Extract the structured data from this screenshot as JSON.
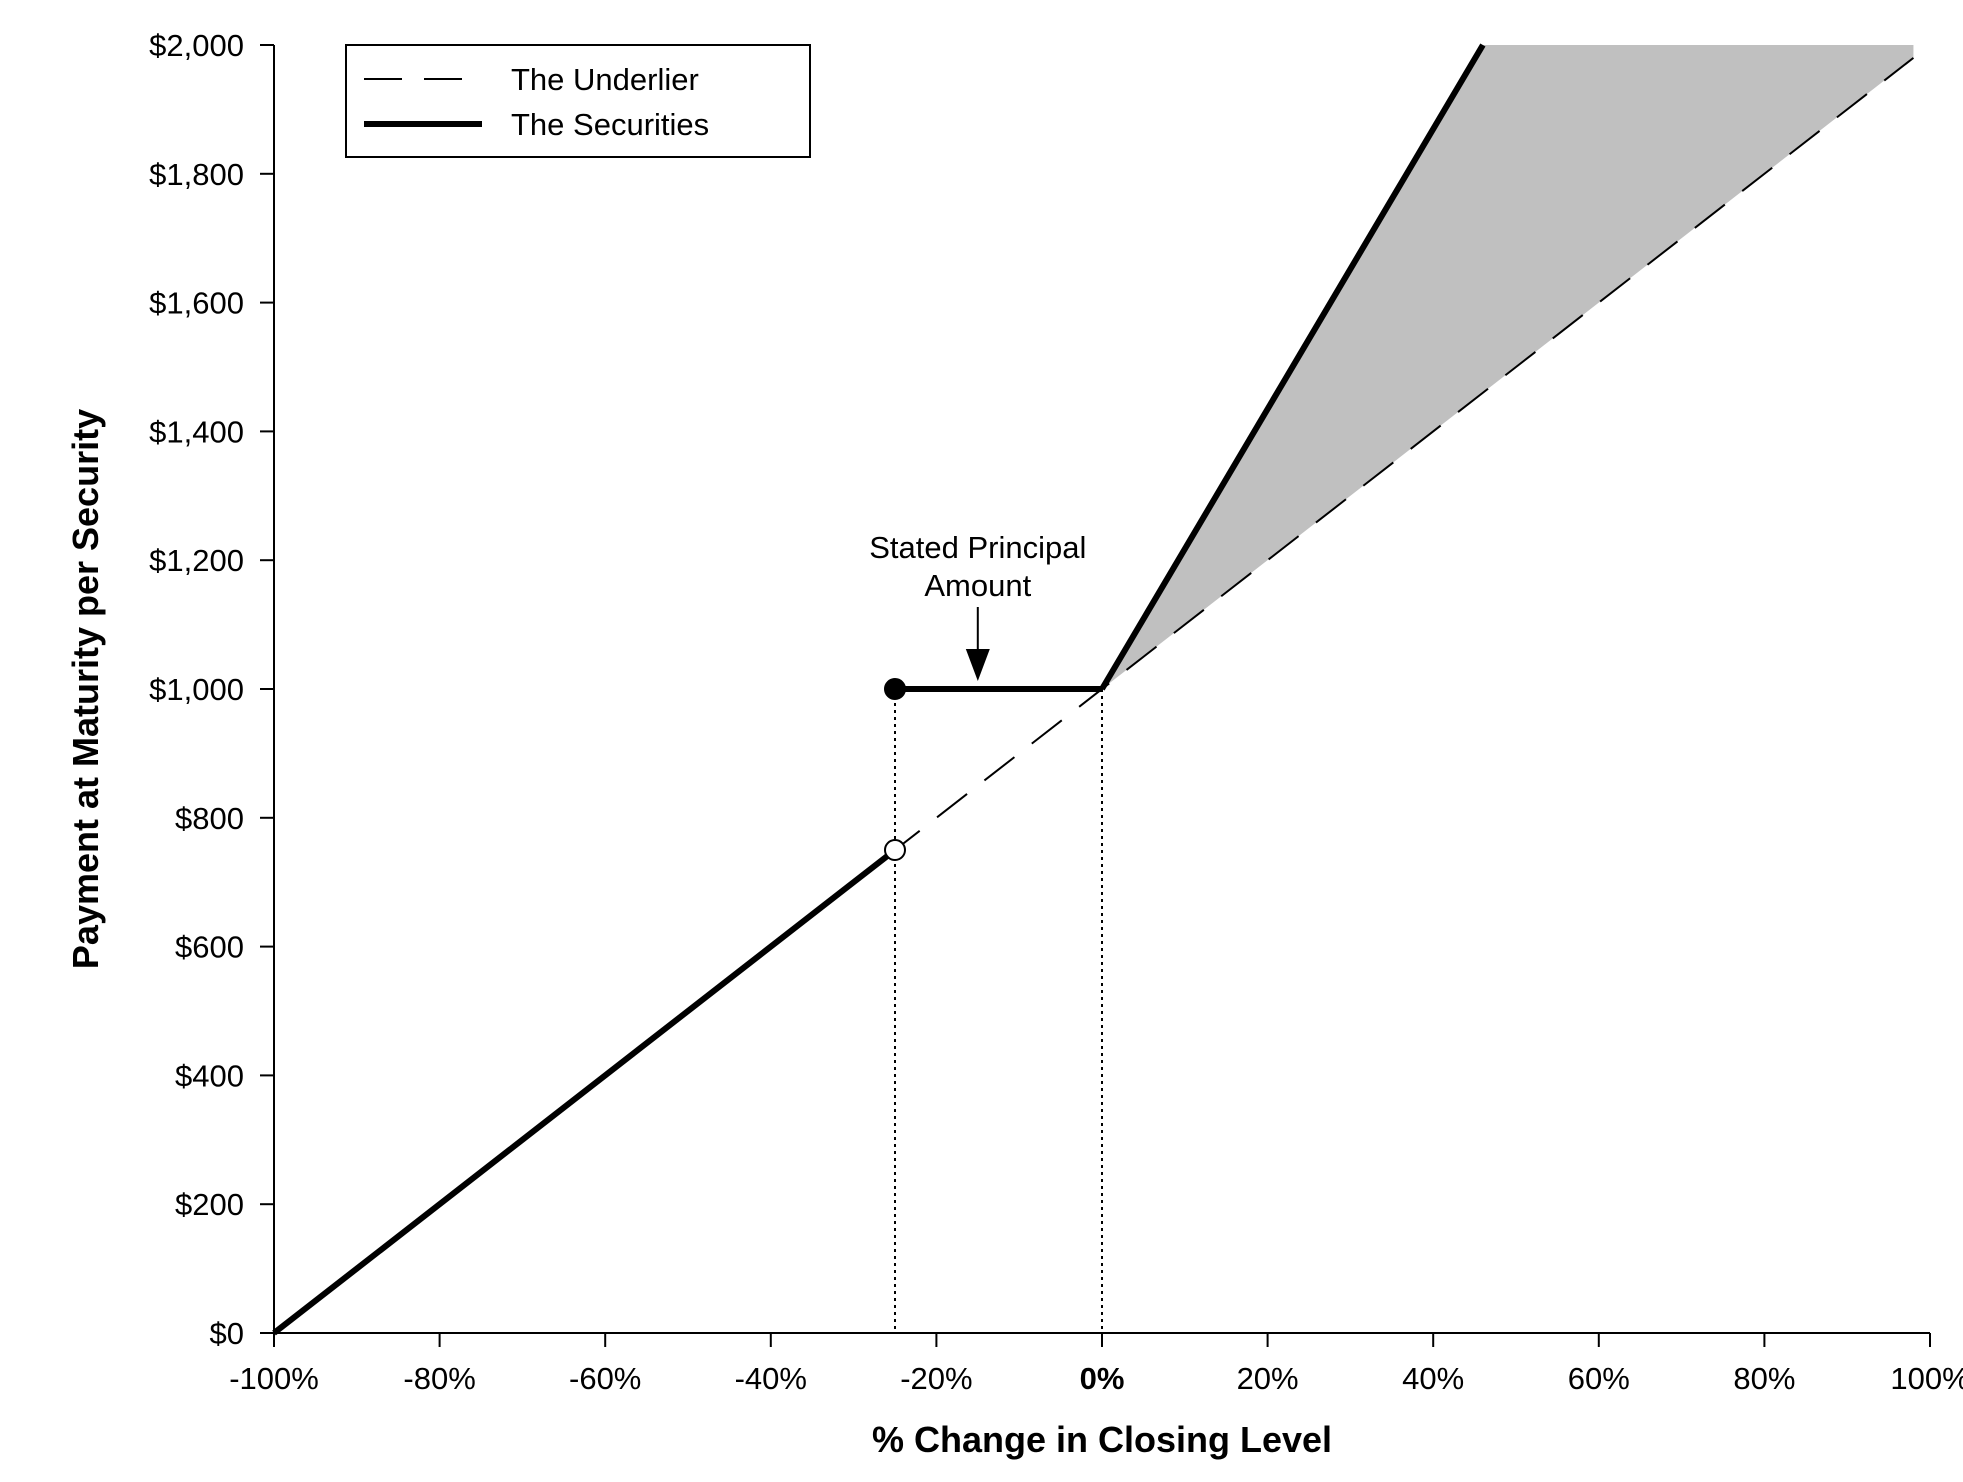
{
  "chart_data": {
    "type": "line",
    "xlabel": "% Change in Closing Level",
    "ylabel": "Payment at Maturity per Security",
    "xlim": [
      -100,
      100
    ],
    "ylim": [
      0,
      2000
    ],
    "x_ticks": [
      -100,
      -80,
      -60,
      -40,
      -20,
      0,
      20,
      40,
      60,
      80,
      100
    ],
    "x_tick_labels": [
      "-100%",
      "-80%",
      "-60%",
      "-40%",
      "-20%",
      "0%",
      "20%",
      "40%",
      "60%",
      "80%",
      "100%"
    ],
    "y_ticks": [
      0,
      200,
      400,
      600,
      800,
      1000,
      1200,
      1400,
      1600,
      1800,
      2000
    ],
    "y_tick_labels": [
      "$0",
      "$200",
      "$400",
      "$600",
      "$800",
      "$1,000",
      "$1,200",
      "$1,400",
      "$1,600",
      "$1,800",
      "$2,000"
    ],
    "grid": false,
    "legend": {
      "placement": "top-left",
      "entries": [
        {
          "name": "The Underlier",
          "style": "dashed"
        },
        {
          "name": "The Securities",
          "style": "solid-thick"
        }
      ]
    },
    "series": [
      {
        "name": "The Underlier",
        "style": "dashed",
        "points": [
          [
            -100,
            0
          ],
          [
            98,
            1980
          ]
        ]
      },
      {
        "name": "The Securities",
        "style": "solid-thick",
        "segments": [
          [
            [
              -100,
              0
            ],
            [
              -25,
              750
            ]
          ],
          [
            [
              -25,
              1000
            ],
            [
              0,
              1000
            ]
          ],
          [
            [
              0,
              1000
            ],
            [
              46,
              2000
            ]
          ]
        ]
      }
    ],
    "markers": [
      {
        "x": -25,
        "y": 1000,
        "kind": "filled-circle"
      },
      {
        "x": -25,
        "y": 750,
        "kind": "open-circle"
      }
    ],
    "reference_lines": [
      {
        "x": -25,
        "y_top": 1000,
        "style": "dotted"
      },
      {
        "x": 0,
        "y_top": 1000,
        "style": "dotted"
      }
    ],
    "shaded_region": {
      "color": "#c0c0c0",
      "polygon": [
        [
          0,
          1000
        ],
        [
          46,
          2000
        ],
        [
          98,
          2000
        ],
        [
          98,
          1980
        ]
      ]
    },
    "annotations": [
      {
        "lines": [
          "Stated Principal",
          "Amount"
        ],
        "arrow_to": {
          "x": -15,
          "y": 1000
        }
      }
    ],
    "colors": {
      "shade": "#c0c0c0",
      "line": "#000000",
      "background": "#ffffff"
    }
  }
}
